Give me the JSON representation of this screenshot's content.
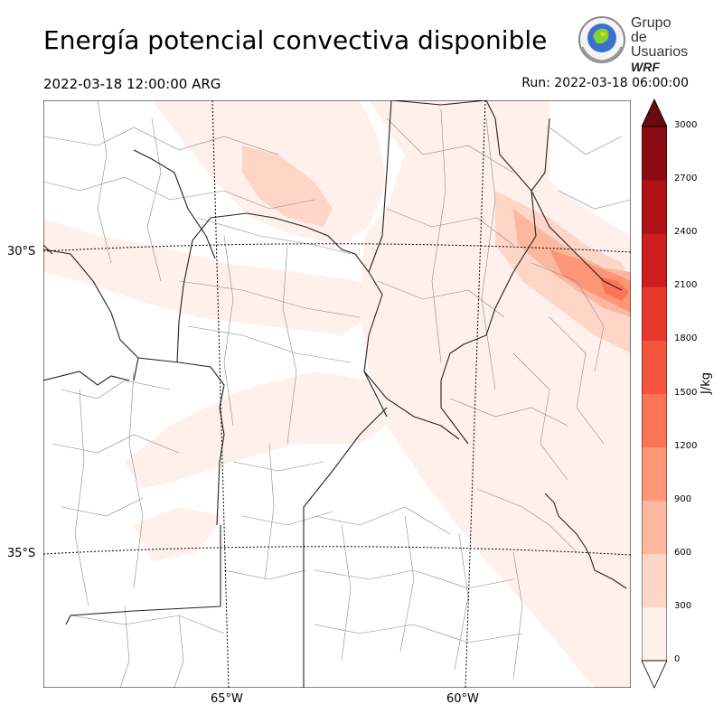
{
  "title": "Energía potencial convectiva disponible",
  "valid_time": "2022-03-18 12:00:00 ARG",
  "run_time": "Run: 2022-03-18 06:00:00",
  "logo": {
    "line1": "Grupo de",
    "line2": "Usuarios",
    "line3": "WRF"
  },
  "map": {
    "lat_labels": [
      "30°S",
      "35°S"
    ],
    "lon_labels": [
      "65°W",
      "60°W"
    ]
  },
  "colorbar": {
    "unit": "J/kg",
    "ticks": [
      "0",
      "300",
      "600",
      "900",
      "1200",
      "1500",
      "1800",
      "2100",
      "2400",
      "2700",
      "3000"
    ],
    "colors": [
      "#fff0eb",
      "#fdd6c7",
      "#fcb89f",
      "#fc9677",
      "#fb7555",
      "#f5553b",
      "#e8382c",
      "#cc1e1f",
      "#b01317",
      "#8c0b13",
      "#6a0a0f"
    ]
  },
  "colors": {
    "frame": "#000000",
    "province_border": "#222222",
    "department_border": "#8a8a8a",
    "graticule": "#000000"
  }
}
